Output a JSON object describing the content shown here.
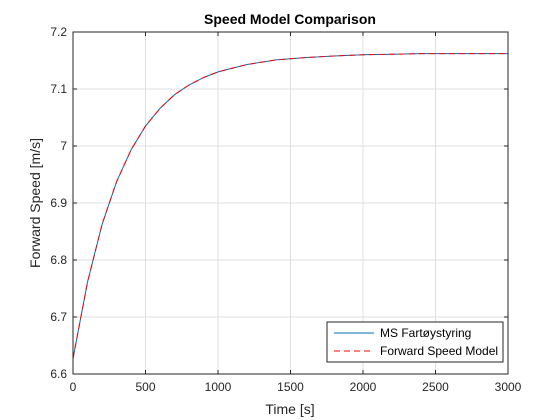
{
  "chart_data": {
    "type": "line",
    "title": "Speed Model Comparison",
    "xlabel": "Time [s]",
    "ylabel": "Forward Speed [m/s]",
    "xlim": [
      0,
      3000
    ],
    "ylim": [
      6.6,
      7.2
    ],
    "x_ticks": [
      0,
      500,
      1000,
      1500,
      2000,
      2500,
      3000
    ],
    "x_tick_labels": [
      "0",
      "500",
      "1000",
      "1500",
      "2000",
      "2500",
      "3000"
    ],
    "y_ticks": [
      6.6,
      6.7,
      6.8,
      6.9,
      7.0,
      7.1,
      7.2
    ],
    "y_tick_labels": [
      "6.6",
      "6.7",
      "6.8",
      "6.9",
      "7",
      "7.1",
      "7.2"
    ],
    "grid": true,
    "legend_position": "bottom-right",
    "series": [
      {
        "name": "MS Fartøystyring",
        "color": "#0072BD",
        "style": "solid",
        "x": [
          0,
          100,
          200,
          300,
          400,
          500,
          600,
          700,
          800,
          900,
          1000,
          1200,
          1400,
          1600,
          1800,
          2000,
          2200,
          2400,
          2600,
          2800,
          3000
        ],
        "y": [
          6.627,
          6.761,
          6.862,
          6.937,
          6.993,
          7.035,
          7.066,
          7.09,
          7.107,
          7.12,
          7.13,
          7.143,
          7.151,
          7.155,
          7.158,
          7.16,
          7.161,
          7.162,
          7.162,
          7.162,
          7.162
        ]
      },
      {
        "name": "Forward Speed Model",
        "color": "#FF0000",
        "style": "dashed",
        "x": [
          0,
          100,
          200,
          300,
          400,
          500,
          600,
          700,
          800,
          900,
          1000,
          1200,
          1400,
          1600,
          1800,
          2000,
          2200,
          2400,
          2600,
          2800,
          3000
        ],
        "y": [
          6.627,
          6.761,
          6.862,
          6.937,
          6.993,
          7.035,
          7.066,
          7.09,
          7.107,
          7.12,
          7.13,
          7.143,
          7.151,
          7.155,
          7.158,
          7.16,
          7.161,
          7.162,
          7.162,
          7.162,
          7.162
        ]
      }
    ]
  }
}
